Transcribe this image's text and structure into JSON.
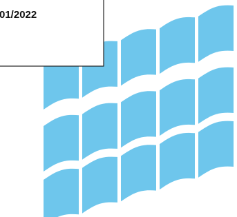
{
  "label": {
    "text": "01/2022"
  }
}
